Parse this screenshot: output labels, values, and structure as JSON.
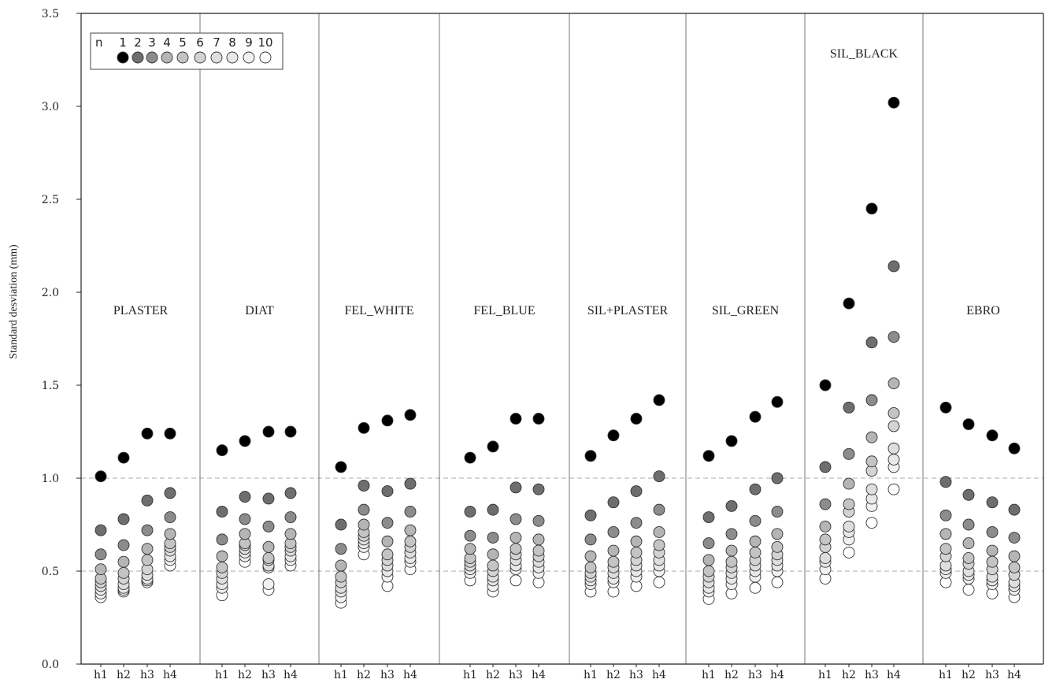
{
  "chart_data": {
    "type": "scatter",
    "title": "",
    "xlabel": "",
    "ylabel": "Standard desviation (mm)",
    "ylim": [
      0,
      3.5
    ],
    "yticks": [
      "0.0",
      "0.5",
      "1.0",
      "1.5",
      "2.0",
      "2.5",
      "3.0",
      "3.5"
    ],
    "reference_lines": [
      0.5,
      1.0
    ],
    "x_categories": [
      "h1",
      "h2",
      "h3",
      "h4"
    ],
    "legend": {
      "title": "n",
      "labels": [
        "1",
        "2",
        "3",
        "4",
        "5",
        "6",
        "7",
        "8",
        "9",
        "10"
      ],
      "colors": [
        "#000000",
        "#6e6e6e",
        "#8c8c8c",
        "#b5b5b5",
        "#c4c4c4",
        "#d3d3d3",
        "#dedede",
        "#e8e8e8",
        "#f1f1f1",
        "#ffffff"
      ],
      "placement": "top-left"
    },
    "groups": [
      {
        "name": "PLASTER",
        "values": [
          [
            1.01,
            0.72,
            0.59,
            0.51,
            0.46,
            0.44,
            0.42,
            0.4,
            0.38,
            0.36
          ],
          [
            1.11,
            0.78,
            0.64,
            0.55,
            0.49,
            0.46,
            0.43,
            0.41,
            0.4,
            0.39
          ],
          [
            1.24,
            0.88,
            0.72,
            0.62,
            0.56,
            0.51,
            0.48,
            0.46,
            0.45,
            0.44
          ],
          [
            1.24,
            0.92,
            0.79,
            0.7,
            0.65,
            0.63,
            0.61,
            0.58,
            0.56,
            0.53
          ]
        ]
      },
      {
        "name": "DIAT",
        "values": [
          [
            1.15,
            0.82,
            0.67,
            0.58,
            0.52,
            0.49,
            0.46,
            0.43,
            0.41,
            0.37
          ],
          [
            1.2,
            0.9,
            0.78,
            0.7,
            0.65,
            0.64,
            0.62,
            0.6,
            0.58,
            0.55
          ],
          [
            1.25,
            0.89,
            0.74,
            0.63,
            0.57,
            0.56,
            0.53,
            0.52,
            0.43,
            0.4
          ],
          [
            1.25,
            0.92,
            0.79,
            0.7,
            0.65,
            0.63,
            0.61,
            0.58,
            0.56,
            0.53
          ]
        ]
      },
      {
        "name": "FEL_WHITE",
        "values": [
          [
            1.06,
            0.75,
            0.62,
            0.53,
            0.47,
            0.44,
            0.41,
            0.39,
            0.36,
            0.33
          ],
          [
            1.27,
            0.96,
            0.83,
            0.75,
            0.71,
            0.69,
            0.67,
            0.65,
            0.63,
            0.59
          ],
          [
            1.31,
            0.93,
            0.76,
            0.66,
            0.59,
            0.56,
            0.53,
            0.5,
            0.47,
            0.42
          ],
          [
            1.34,
            0.97,
            0.82,
            0.72,
            0.66,
            0.63,
            0.6,
            0.57,
            0.55,
            0.51
          ]
        ]
      },
      {
        "name": "FEL_BLUE",
        "values": [
          [
            1.11,
            0.82,
            0.69,
            0.62,
            0.57,
            0.55,
            0.53,
            0.51,
            0.49,
            0.45
          ],
          [
            1.17,
            0.83,
            0.68,
            0.59,
            0.53,
            0.5,
            0.47,
            0.45,
            0.42,
            0.39
          ],
          [
            1.32,
            0.95,
            0.78,
            0.68,
            0.62,
            0.59,
            0.56,
            0.53,
            0.51,
            0.45
          ],
          [
            1.32,
            0.94,
            0.77,
            0.67,
            0.61,
            0.58,
            0.55,
            0.52,
            0.49,
            0.44
          ]
        ]
      },
      {
        "name": "SIL+PLASTER",
        "values": [
          [
            1.12,
            0.8,
            0.67,
            0.58,
            0.52,
            0.49,
            0.47,
            0.45,
            0.43,
            0.39
          ],
          [
            1.23,
            0.87,
            0.71,
            0.61,
            0.55,
            0.52,
            0.49,
            0.46,
            0.44,
            0.39
          ],
          [
            1.32,
            0.93,
            0.76,
            0.66,
            0.6,
            0.56,
            0.53,
            0.5,
            0.47,
            0.42
          ],
          [
            1.42,
            1.01,
            0.83,
            0.71,
            0.64,
            0.6,
            0.56,
            0.53,
            0.5,
            0.44
          ]
        ]
      },
      {
        "name": "SIL_GREEN",
        "values": [
          [
            1.12,
            0.79,
            0.65,
            0.56,
            0.5,
            0.47,
            0.44,
            0.41,
            0.39,
            0.35
          ],
          [
            1.2,
            0.85,
            0.7,
            0.61,
            0.55,
            0.52,
            0.49,
            0.46,
            0.43,
            0.38
          ],
          [
            1.33,
            0.94,
            0.77,
            0.66,
            0.6,
            0.56,
            0.53,
            0.5,
            0.47,
            0.41
          ],
          [
            1.41,
            1.0,
            0.82,
            0.7,
            0.63,
            0.59,
            0.56,
            0.53,
            0.5,
            0.44
          ]
        ]
      },
      {
        "name": "SIL_BLACK",
        "values": [
          [
            1.5,
            1.06,
            0.86,
            0.74,
            0.67,
            0.63,
            0.57,
            0.55,
            0.51,
            0.46
          ],
          [
            1.94,
            1.38,
            1.13,
            0.97,
            0.86,
            0.82,
            0.74,
            0.71,
            0.67,
            0.6
          ],
          [
            2.45,
            1.73,
            1.42,
            1.22,
            1.09,
            1.04,
            0.94,
            0.89,
            0.85,
            0.76
          ],
          [
            3.02,
            2.14,
            1.76,
            1.51,
            1.35,
            1.28,
            1.16,
            1.1,
            1.06,
            0.94
          ]
        ]
      },
      {
        "name": "EBRO",
        "values": [
          [
            1.38,
            0.98,
            0.8,
            0.7,
            0.62,
            0.58,
            0.53,
            0.51,
            0.49,
            0.44
          ],
          [
            1.29,
            0.91,
            0.75,
            0.65,
            0.57,
            0.54,
            0.5,
            0.48,
            0.46,
            0.4
          ],
          [
            1.23,
            0.87,
            0.71,
            0.61,
            0.55,
            0.51,
            0.47,
            0.45,
            0.43,
            0.38
          ],
          [
            1.16,
            0.83,
            0.68,
            0.58,
            0.52,
            0.48,
            0.44,
            0.42,
            0.4,
            0.36
          ]
        ]
      }
    ]
  }
}
